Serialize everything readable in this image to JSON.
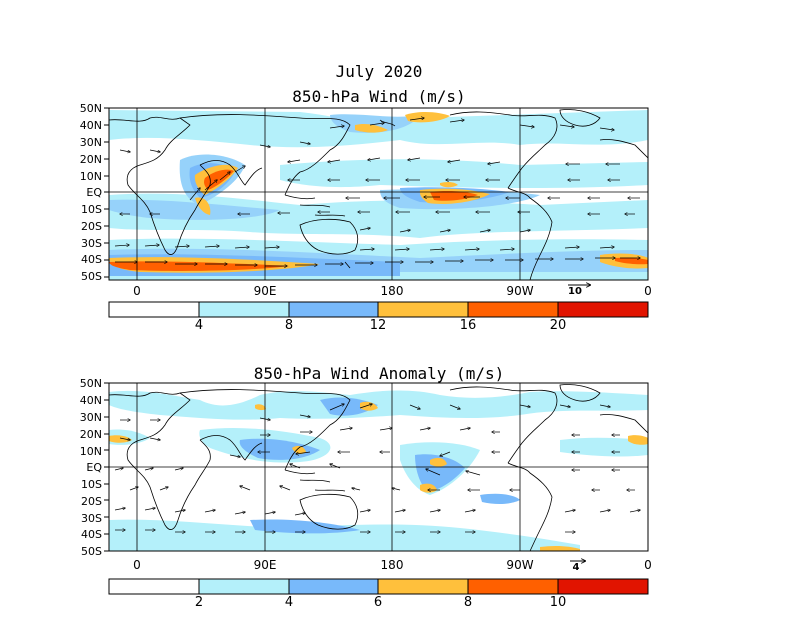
{
  "top": {
    "title_line1": "July 2020",
    "title_line2": "850-hPa Wind (m/s)",
    "ref_vector_label": "10",
    "colorbar_labels": [
      "4",
      "8",
      "12",
      "16",
      "20"
    ]
  },
  "bottom": {
    "title": "850-hPa Wind Anomaly (m/s)",
    "ref_vector_label": "4",
    "colorbar_labels": [
      "2",
      "4",
      "6",
      "8",
      "10"
    ]
  },
  "lat_labels": [
    "50N",
    "40N",
    "30N",
    "20N",
    "10N",
    "EQ",
    "10S",
    "20S",
    "30S",
    "40S",
    "50S"
  ],
  "lon_labels": [
    "0",
    "90E",
    "180",
    "90W",
    "0"
  ],
  "colors": {
    "level0": "#ffffff",
    "level1": "#b4f0fa",
    "level2": "#96d2fa",
    "level3": "#78b9fa",
    "level4": "#ffc03c",
    "level5": "#ff6000",
    "level6": "#e11400"
  }
}
